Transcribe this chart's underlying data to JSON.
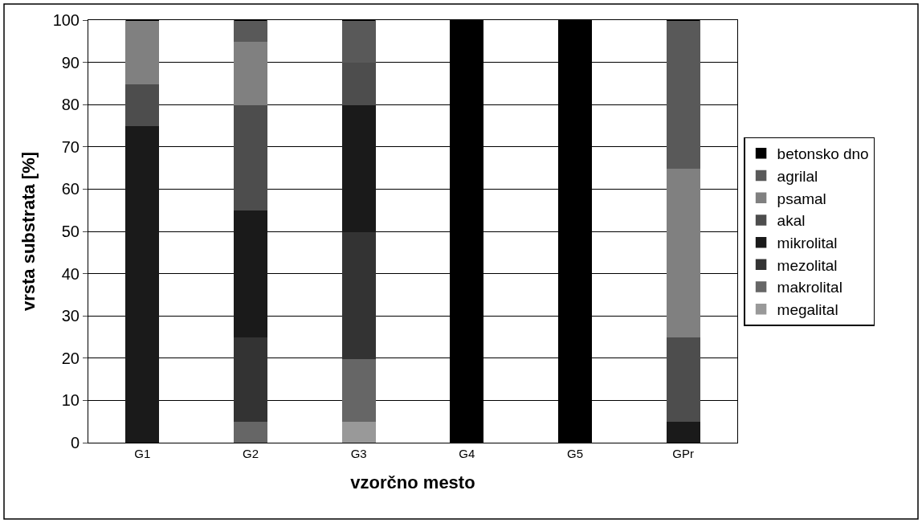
{
  "chart_data": {
    "type": "bar",
    "stacked": true,
    "xlabel": "vzorčno mesto",
    "ylabel": "vrsta substrata [%]",
    "categories": [
      "G1",
      "G2",
      "G3",
      "G4",
      "G5",
      "GPr"
    ],
    "series": [
      {
        "name": "megalital",
        "color": "#999999",
        "values": [
          0,
          0,
          5,
          0,
          0,
          0
        ]
      },
      {
        "name": "makrolital",
        "color": "#666666",
        "values": [
          0,
          5,
          15,
          0,
          0,
          0
        ]
      },
      {
        "name": "mezolital",
        "color": "#333333",
        "values": [
          0,
          20,
          30,
          0,
          0,
          0
        ]
      },
      {
        "name": "mikrolital",
        "color": "#1a1a1a",
        "values": [
          75,
          30,
          30,
          0,
          0,
          5
        ]
      },
      {
        "name": "akal",
        "color": "#4d4d4d",
        "values": [
          10,
          25,
          10,
          0,
          0,
          20
        ]
      },
      {
        "name": "psamal",
        "color": "#808080",
        "values": [
          15,
          15,
          0,
          0,
          0,
          40
        ]
      },
      {
        "name": "agrilal",
        "color": "#595959",
        "values": [
          0,
          5,
          10,
          0,
          0,
          35
        ]
      },
      {
        "name": "betonsko dno",
        "color": "#000000",
        "values": [
          0,
          0,
          0,
          100,
          100,
          0
        ]
      }
    ],
    "ylim": [
      0,
      100
    ],
    "yticks": [
      0,
      10,
      20,
      30,
      40,
      50,
      60,
      70,
      80,
      90,
      100
    ],
    "grid": "y",
    "legend": "right"
  }
}
